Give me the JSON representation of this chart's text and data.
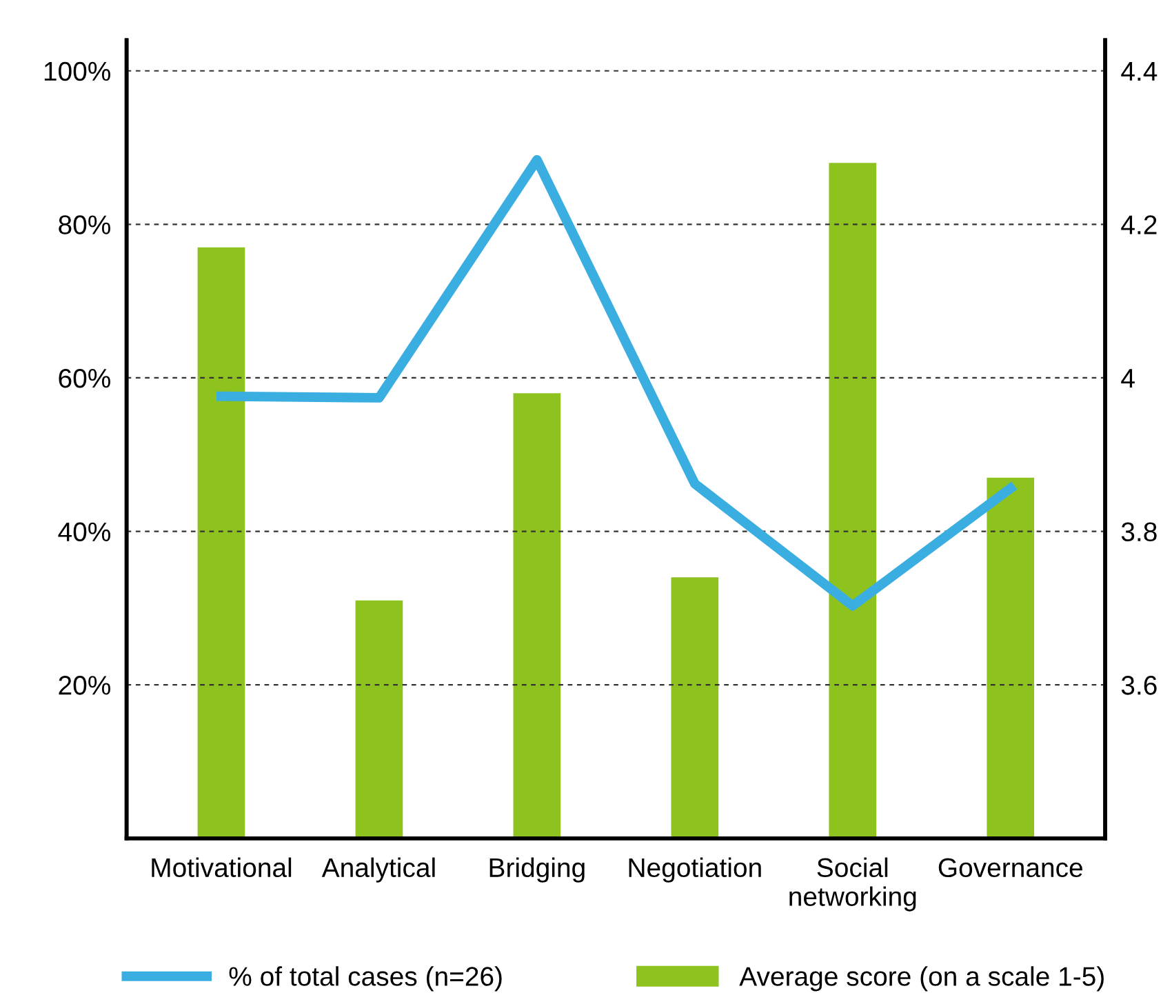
{
  "chart_data": {
    "type": "bar",
    "categories": [
      "Motivational",
      "Analytical",
      "Bridging",
      "Negotiation",
      "Social\nnetworking",
      "Governance"
    ],
    "series": [
      {
        "name": "% of total cases (n=26)",
        "type": "line",
        "color": "#3aaee0",
        "values": [
          57.6,
          57.4,
          88.4,
          46.2,
          30.3,
          45.6
        ]
      },
      {
        "name": "Average score (on a scale 1-5)",
        "axis": "y2",
        "color": "#8dc21f",
        "values": [
          4.17,
          3.71,
          3.98,
          3.74,
          4.28,
          3.87
        ]
      }
    ],
    "ylim": [
      0,
      104
    ],
    "yticks": [
      {
        "value": 20,
        "label": "20%"
      },
      {
        "value": 40,
        "label": "40%"
      },
      {
        "value": 60,
        "label": "60%"
      },
      {
        "value": 80,
        "label": "80%"
      },
      {
        "value": 100,
        "label": "100%"
      }
    ],
    "y2lim": [
      3.4,
      4.44
    ],
    "y2ticks": [
      3.6,
      3.8,
      4,
      4.2,
      4.4
    ],
    "grid": "y",
    "legend": "bottom",
    "marker": "none"
  }
}
